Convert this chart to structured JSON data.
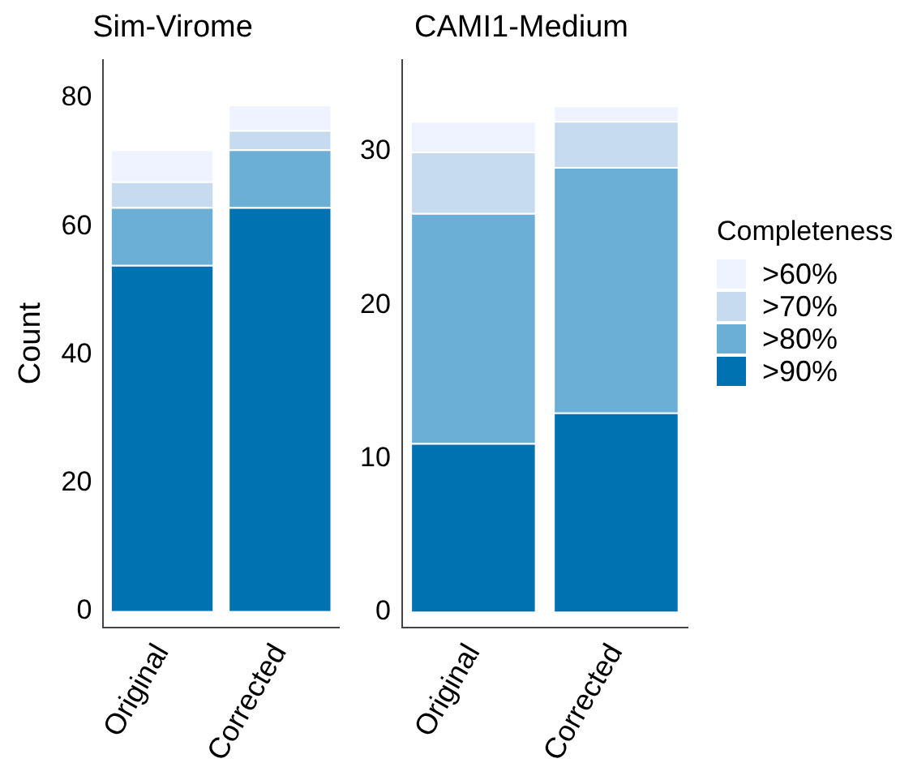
{
  "chart_data": [
    {
      "type": "bar",
      "title": "Sim-Virome",
      "ylabel": "Count",
      "categories": [
        "Original",
        "Corrected"
      ],
      "stacked": true,
      "ylim": [
        -2.5,
        86
      ],
      "yticks": [
        0,
        20,
        40,
        60,
        80
      ],
      "grid": false,
      "legend": "right",
      "series": [
        {
          "name": ">90%",
          "color": "#0072b2",
          "values": [
            54,
            63
          ]
        },
        {
          "name": ">80%",
          "color": "#6baed6",
          "values": [
            9,
            9
          ]
        },
        {
          "name": ">70%",
          "color": "#c6dbef",
          "values": [
            4,
            3
          ]
        },
        {
          "name": ">60%",
          "color": "#eff3ff",
          "values": [
            5,
            4
          ]
        }
      ]
    },
    {
      "type": "bar",
      "title": "CAMI1-Medium",
      "legend_title": "Completeness",
      "categories": [
        "Original",
        "Corrected"
      ],
      "stacked": true,
      "ylim": [
        -1,
        36
      ],
      "yticks": [
        0,
        10,
        20,
        30
      ],
      "grid": false,
      "legend": "right",
      "series": [
        {
          "name": ">90%",
          "color": "#0072b2",
          "values": [
            11,
            13
          ]
        },
        {
          "name": ">80%",
          "color": "#6baed6",
          "values": [
            15,
            16
          ]
        },
        {
          "name": ">70%",
          "color": "#c6dbef",
          "values": [
            4,
            3
          ]
        },
        {
          "name": ">60%",
          "color": "#eff3ff",
          "values": [
            2,
            1
          ]
        }
      ]
    }
  ]
}
